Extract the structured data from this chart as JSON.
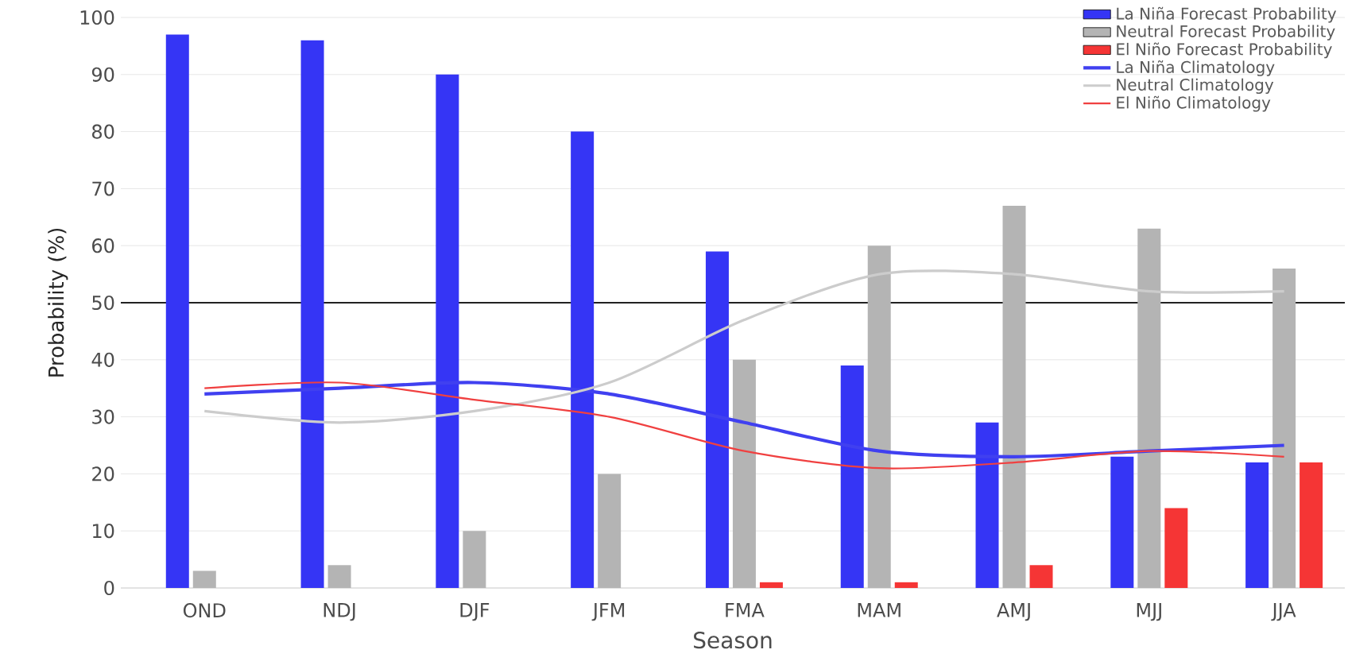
{
  "chart_data": {
    "type": "bar",
    "xlabel": "Season",
    "ylabel": "Probability (%)",
    "categories": [
      "OND",
      "NDJ",
      "DJF",
      "JFM",
      "FMA",
      "MAM",
      "AMJ",
      "MJJ",
      "JJA"
    ],
    "series": [
      {
        "name": "La Niña Forecast Probability",
        "color": "#3535f5",
        "values": [
          97,
          96,
          90,
          80,
          59,
          39,
          29,
          23,
          22
        ]
      },
      {
        "name": "Neutral Forecast Probability",
        "color": "#b4b4b4",
        "values": [
          3,
          4,
          10,
          20,
          40,
          60,
          67,
          63,
          56
        ]
      },
      {
        "name": "El Niño Forecast Probability",
        "color": "#f53535",
        "values": [
          0,
          0,
          0,
          0,
          1,
          1,
          4,
          14,
          22
        ]
      },
      {
        "name": "La Niña Climatology",
        "type": "line",
        "color": "#4040f0",
        "values": [
          34,
          35,
          36,
          34,
          29,
          24,
          23,
          24,
          25
        ]
      },
      {
        "name": "Neutral Climatology",
        "type": "line",
        "color": "#cccccc",
        "values": [
          31,
          29,
          31,
          36,
          47,
          55,
          55,
          52,
          52
        ]
      },
      {
        "name": "El Niño Climatology",
        "type": "line",
        "color": "#f04040",
        "values": [
          35,
          36,
          33,
          30,
          24,
          21,
          22,
          24,
          23
        ]
      }
    ],
    "ylim": [
      0,
      100
    ],
    "yticks": [
      0,
      10,
      20,
      30,
      40,
      50,
      60,
      70,
      80,
      90,
      100
    ],
    "grid": "y",
    "legend": "top right",
    "marker": "none",
    "ref_lines": [
      {
        "axis": "y",
        "value": 50,
        "color": "#222222"
      }
    ]
  }
}
